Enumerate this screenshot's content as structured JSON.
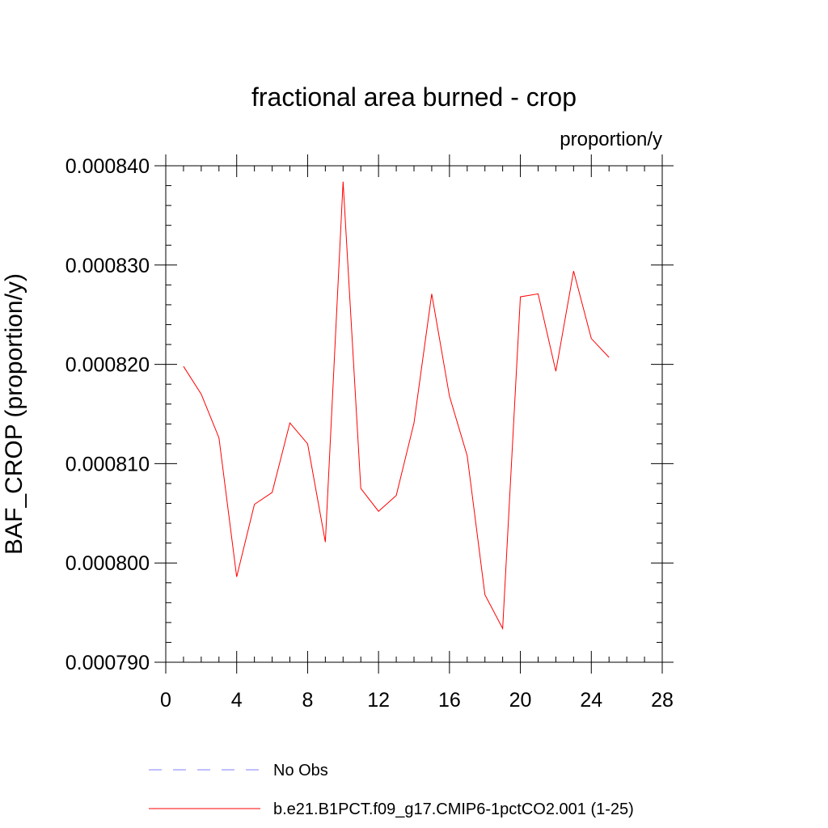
{
  "chart_data": {
    "type": "line",
    "title": "fractional area burned - crop",
    "units": "proportion/y",
    "ylabel": "BAF_CROP  (proportion/y)",
    "xlabel": "",
    "xlim": [
      0,
      28
    ],
    "ylim": [
      0.00079,
      0.00084
    ],
    "xticks": [
      0,
      4,
      8,
      12,
      16,
      20,
      24,
      28
    ],
    "xtick_labels": [
      "0",
      "4",
      "8",
      "12",
      "16",
      "20",
      "24",
      "28"
    ],
    "yticks": [
      0.00079,
      0.0008,
      0.00081,
      0.00082,
      0.00083,
      0.00084
    ],
    "ytick_labels": [
      "0.000790",
      "0.000800",
      "0.000810",
      "0.000820",
      "0.000830",
      "0.000840"
    ],
    "x_minor_step": 1,
    "y_minor_step": 2e-06,
    "grid": false,
    "series": [
      {
        "name": "b.e21.B1PCT.f09_g17.CMIP6-1pctCO2.001 (1-25)",
        "color": "#ff0000",
        "style": "solid",
        "x": [
          1,
          2,
          3,
          4,
          5,
          6,
          7,
          8,
          9,
          10,
          11,
          12,
          13,
          14,
          15,
          16,
          17,
          18,
          19,
          20,
          21,
          22,
          23,
          24,
          25
        ],
        "y": [
          0.0008198,
          0.000817,
          0.0008126,
          0.0007986,
          0.0008059,
          0.0008071,
          0.0008141,
          0.000812,
          0.0008021,
          0.0008384,
          0.0008075,
          0.0008052,
          0.0008068,
          0.0008141,
          0.0008271,
          0.0008168,
          0.0008108,
          0.0007968,
          0.0007934,
          0.0008268,
          0.0008271,
          0.0008193,
          0.0008294,
          0.0008226,
          0.0008207
        ]
      }
    ],
    "legend": [
      {
        "label": "No Obs",
        "color": "#8080ff",
        "style": "dashed"
      },
      {
        "label": "b.e21.B1PCT.f09_g17.CMIP6-1pctCO2.001 (1-25)",
        "color": "#ff0000",
        "style": "solid"
      }
    ],
    "legend_position": "bottom"
  }
}
